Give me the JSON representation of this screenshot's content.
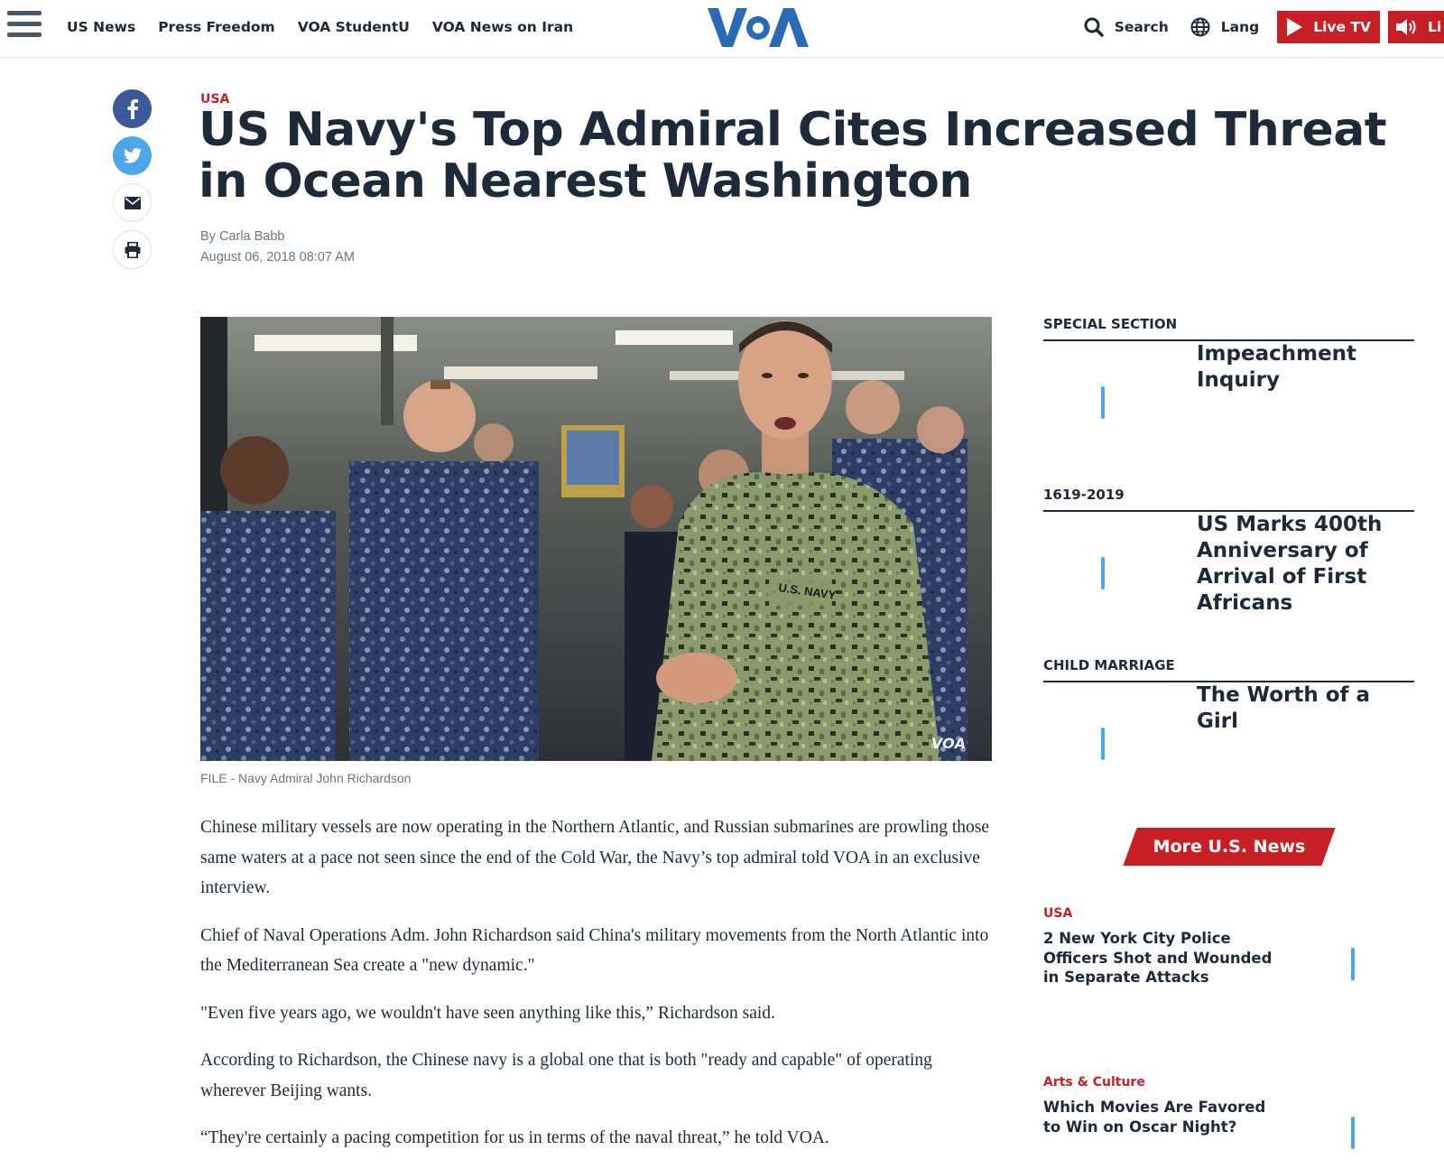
{
  "nav": {
    "items": [
      "US News",
      "Press Freedom",
      "VOA StudentU",
      "VOA News on Iran"
    ],
    "logo": "VOA",
    "search_label": "Search",
    "lang_label": "Lang",
    "live_tv_label": "Live TV",
    "live_radio_label": "Li"
  },
  "article": {
    "category": "USA",
    "headline": "US Navy's Top Admiral Cites Increased Threat in Ocean Nearest Washington",
    "byline": "By Carla Babb",
    "date": "August 06, 2018 08:07 AM",
    "photo_watermark": "VOA",
    "photo_patch": "U.S. NAVY",
    "caption": "FILE - Navy Admiral John Richardson",
    "paragraphs": [
      "Chinese military vessels are now operating in the Northern Atlantic, and Russian submarines are prowling those same waters at a pace not seen since the end of the Cold War, the Navy’s top admiral told VOA in an exclusive interview.",
      "Chief of Naval Operations Adm. John Richardson said China's military movements from the North Atlantic into the Mediterranean Sea create a \"new dynamic.\"",
      "\"Even five years ago, we wouldn't have seen anything like this,” Richardson said.",
      "According to Richardson, the Chinese navy is a global one that is both \"ready and capable\" of operating wherever Beijing wants.",
      "“They're certainly a pacing competition for us in terms of the naval threat,” he told VOA."
    ]
  },
  "sidebar": {
    "sections": [
      {
        "label": "SPECIAL SECTION",
        "title": "Impeachment Inquiry"
      },
      {
        "label": "1619-2019",
        "title": "US Marks 400th Anniversary of Arrival of First Africans"
      },
      {
        "label": "CHILD MARRIAGE",
        "title": "The Worth of a Girl"
      }
    ],
    "more_news_label": "More U.S. News",
    "news": [
      {
        "category": "USA",
        "title": "2 New York City Police Officers Shot and Wounded in Separate Attacks"
      },
      {
        "category": "Arts & Culture",
        "title": "Which Movies Are Favored to Win on Oscar Night?"
      }
    ]
  },
  "colors": {
    "accent_red": "#c62026",
    "brand_blue": "#2a6ab8",
    "text_dark": "#1c2a3a",
    "facebook": "#3b5998",
    "twitter": "#4ca6e8"
  }
}
